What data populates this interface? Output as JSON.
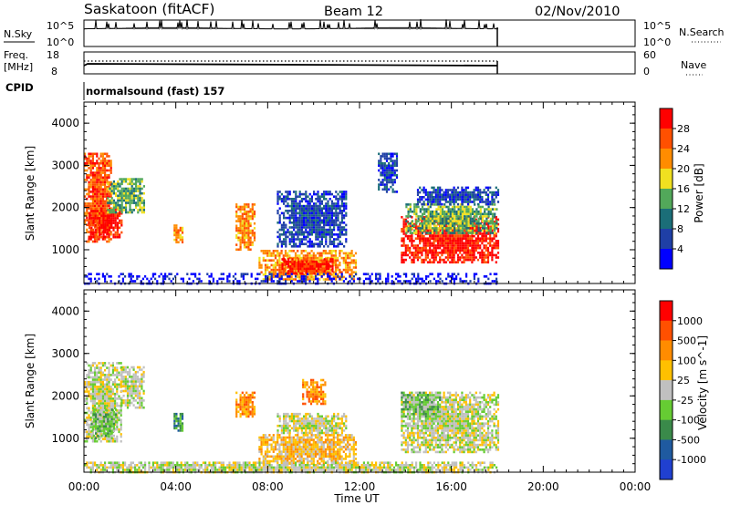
{
  "header": {
    "station": "Saskatoon (fitACF)",
    "beam": "Beam 12",
    "date": "02/Nov/2010"
  },
  "nsky_panel": {
    "left_label": "N.Sky",
    "left_top_tick": "10^5",
    "left_bottom_tick": "10^0",
    "right_top_tick": "10^5",
    "right_bottom_tick": "10^0",
    "right_label": "N.Search"
  },
  "freq_panel": {
    "left_label_1": "Freq.",
    "left_label_2": "[MHz]",
    "left_top_tick": "18",
    "left_bottom_tick": "8",
    "right_top_tick": "60",
    "right_bottom_tick": "0",
    "right_label": "Nave"
  },
  "cpid": {
    "label": "CPID",
    "value": "normalsound (fast) 157"
  },
  "colors": {
    "power": [
      "#0000ff",
      "#1f3fa6",
      "#1b6e78",
      "#52a85a",
      "#f0e020",
      "#ff8c00",
      "#ff5000",
      "#ff0000"
    ],
    "velocity": [
      "#2040d0",
      "#1f5aa0",
      "#3a8a4a",
      "#66cc33",
      "#c0c0c0",
      "#ffc000",
      "#ff8c00",
      "#ff5000",
      "#ff0000"
    ]
  },
  "chart_data": [
    {
      "type": "heatmap",
      "name": "power",
      "ylabel": "Slant Range [km]",
      "yticks": [
        "1000",
        "2000",
        "3000",
        "4000"
      ],
      "ylim": [
        200,
        4500
      ],
      "xlim": [
        0,
        24
      ],
      "colorbar_label": "Power [dB]",
      "colorbar_ticks": [
        "4",
        "8",
        "12",
        "16",
        "20",
        "24",
        "28"
      ],
      "blobs": [
        {
          "t0": 0.0,
          "t1": 1.2,
          "r0": 1200,
          "r1": 3300,
          "level": 6
        },
        {
          "t0": 0.2,
          "t1": 1.6,
          "r0": 1300,
          "r1": 2000,
          "level": 7
        },
        {
          "t0": 1.0,
          "t1": 2.6,
          "r0": 1900,
          "r1": 2700,
          "level": 3
        },
        {
          "t0": 3.9,
          "t1": 4.3,
          "r0": 1200,
          "r1": 1600,
          "level": 5
        },
        {
          "t0": 6.6,
          "t1": 7.4,
          "r0": 1000,
          "r1": 2100,
          "level": 5
        },
        {
          "t0": 8.4,
          "t1": 11.4,
          "r0": 1100,
          "r1": 2400,
          "level": 1
        },
        {
          "t0": 7.6,
          "t1": 11.8,
          "r0": 300,
          "r1": 1000,
          "level": 5
        },
        {
          "t0": 8.6,
          "t1": 10.8,
          "r0": 450,
          "r1": 800,
          "level": 7
        },
        {
          "t0": 12.8,
          "t1": 13.6,
          "r0": 2400,
          "r1": 3300,
          "level": 1
        },
        {
          "t0": 13.8,
          "t1": 18.0,
          "r0": 700,
          "r1": 1800,
          "level": 7
        },
        {
          "t0": 14.0,
          "t1": 18.0,
          "r0": 1400,
          "r1": 2100,
          "level": 3
        },
        {
          "t0": 14.5,
          "t1": 18.0,
          "r0": 2100,
          "r1": 2500,
          "level": 1
        },
        {
          "t0": 0.0,
          "t1": 18.0,
          "r0": 200,
          "r1": 450,
          "level": 0
        }
      ]
    },
    {
      "type": "heatmap",
      "name": "velocity",
      "ylabel": "Slant Range [km]",
      "yticks": [
        "1000",
        "2000",
        "3000",
        "4000"
      ],
      "ylim": [
        200,
        4500
      ],
      "xlim": [
        0,
        24
      ],
      "xlabel": "Time UT",
      "xticks": [
        "00:00",
        "04:00",
        "08:00",
        "12:00",
        "16:00",
        "20:00",
        "00:00"
      ],
      "colorbar_label": "Velocity [m s^-1]",
      "colorbar_ticks": [
        "1000",
        "500",
        "100",
        "25",
        "-25",
        "-100",
        "-500",
        "-1000"
      ],
      "blobs": [
        {
          "t0": 0.0,
          "t1": 1.6,
          "r0": 900,
          "r1": 2800,
          "level": 4
        },
        {
          "t0": 0.3,
          "t1": 1.4,
          "r0": 1000,
          "r1": 1700,
          "level": 3
        },
        {
          "t0": 1.6,
          "t1": 2.6,
          "r0": 1700,
          "r1": 2700,
          "level": 4
        },
        {
          "t0": 3.9,
          "t1": 4.3,
          "r0": 1200,
          "r1": 1600,
          "level": 2
        },
        {
          "t0": 6.6,
          "t1": 7.4,
          "r0": 1500,
          "r1": 2100,
          "level": 6
        },
        {
          "t0": 8.4,
          "t1": 11.4,
          "r0": 1100,
          "r1": 1600,
          "level": 4
        },
        {
          "t0": 9.5,
          "t1": 10.5,
          "r0": 1800,
          "r1": 2400,
          "level": 6
        },
        {
          "t0": 7.6,
          "t1": 11.8,
          "r0": 400,
          "r1": 1100,
          "level": 5
        },
        {
          "t0": 13.8,
          "t1": 18.0,
          "r0": 700,
          "r1": 2100,
          "level": 4
        },
        {
          "t0": 13.8,
          "t1": 15.5,
          "r0": 1500,
          "r1": 2100,
          "level": 3
        },
        {
          "t0": 0.0,
          "t1": 18.0,
          "r0": 200,
          "r1": 450,
          "level": 4
        }
      ]
    }
  ]
}
